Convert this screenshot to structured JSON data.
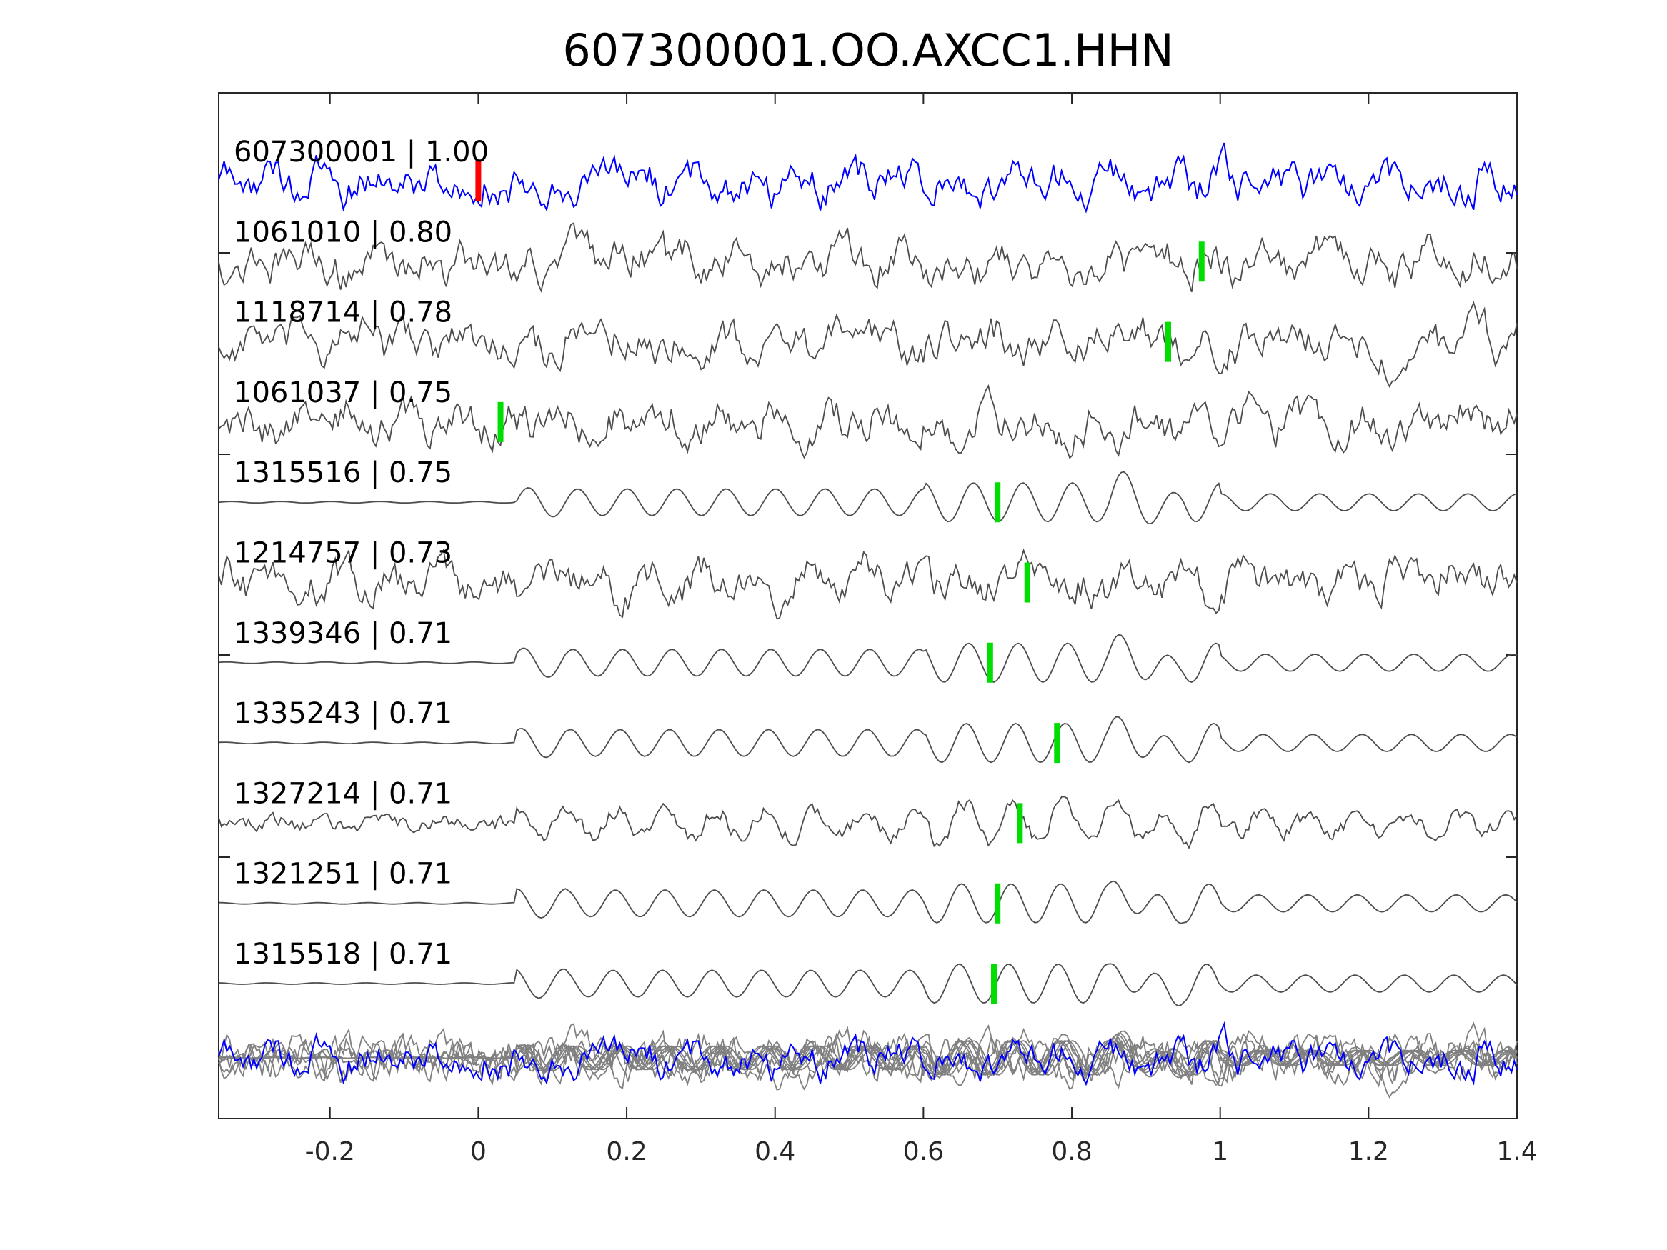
{
  "chart_data": {
    "type": "line",
    "title": "607300001.OO.AXCC1.HHN",
    "xlabel": "",
    "ylabel": "",
    "xlim": [
      -0.35,
      1.4
    ],
    "xticks": [
      -0.2,
      0,
      0.2,
      0.4,
      0.6,
      0.8,
      1,
      1.2,
      1.4
    ],
    "xtick_labels": [
      "-0.2",
      "0",
      "0.2",
      "0.4",
      "0.6",
      "0.8",
      "1",
      "1.2",
      "1.4"
    ],
    "grid": false,
    "colors": {
      "reference": "#0000ff",
      "trace": "#4d4d4d",
      "stack": "#808080",
      "reference_pick": "#ff0000",
      "pick": "#00dd00"
    },
    "traces": [
      {
        "label": "607300001 | 1.00",
        "id": "607300001",
        "cc": 1.0,
        "pick": 0.0,
        "kind": "reference",
        "style": "noisy"
      },
      {
        "label": "1061010 | 0.80",
        "id": "1061010",
        "cc": 0.8,
        "pick": 0.975,
        "style": "noisy"
      },
      {
        "label": "1118714 | 0.78",
        "id": "1118714",
        "cc": 0.78,
        "pick": 0.93,
        "style": "noisy"
      },
      {
        "label": "1061037 | 0.75",
        "id": "1061037",
        "cc": 0.75,
        "pick": 0.03,
        "style": "noisy"
      },
      {
        "label": "1315516 | 0.75",
        "id": "1315516",
        "cc": 0.75,
        "pick": 0.7,
        "style": "smooth"
      },
      {
        "label": "1214757 | 0.73",
        "id": "1214757",
        "cc": 0.73,
        "pick": 0.74,
        "style": "noisy"
      },
      {
        "label": "1339346 | 0.71",
        "id": "1339346",
        "cc": 0.71,
        "pick": 0.69,
        "style": "smooth"
      },
      {
        "label": "1335243 | 0.71",
        "id": "1335243",
        "cc": 0.71,
        "pick": 0.78,
        "style": "smooth"
      },
      {
        "label": "1327214 | 0.71",
        "id": "1327214",
        "cc": 0.71,
        "pick": 0.73,
        "style": "mixed"
      },
      {
        "label": "1321251 | 0.71",
        "id": "1321251",
        "cc": 0.71,
        "pick": 0.7,
        "style": "smooth"
      },
      {
        "label": "1315518 | 0.71",
        "id": "1315518",
        "cc": 0.71,
        "pick": 0.695,
        "style": "smooth"
      }
    ]
  }
}
